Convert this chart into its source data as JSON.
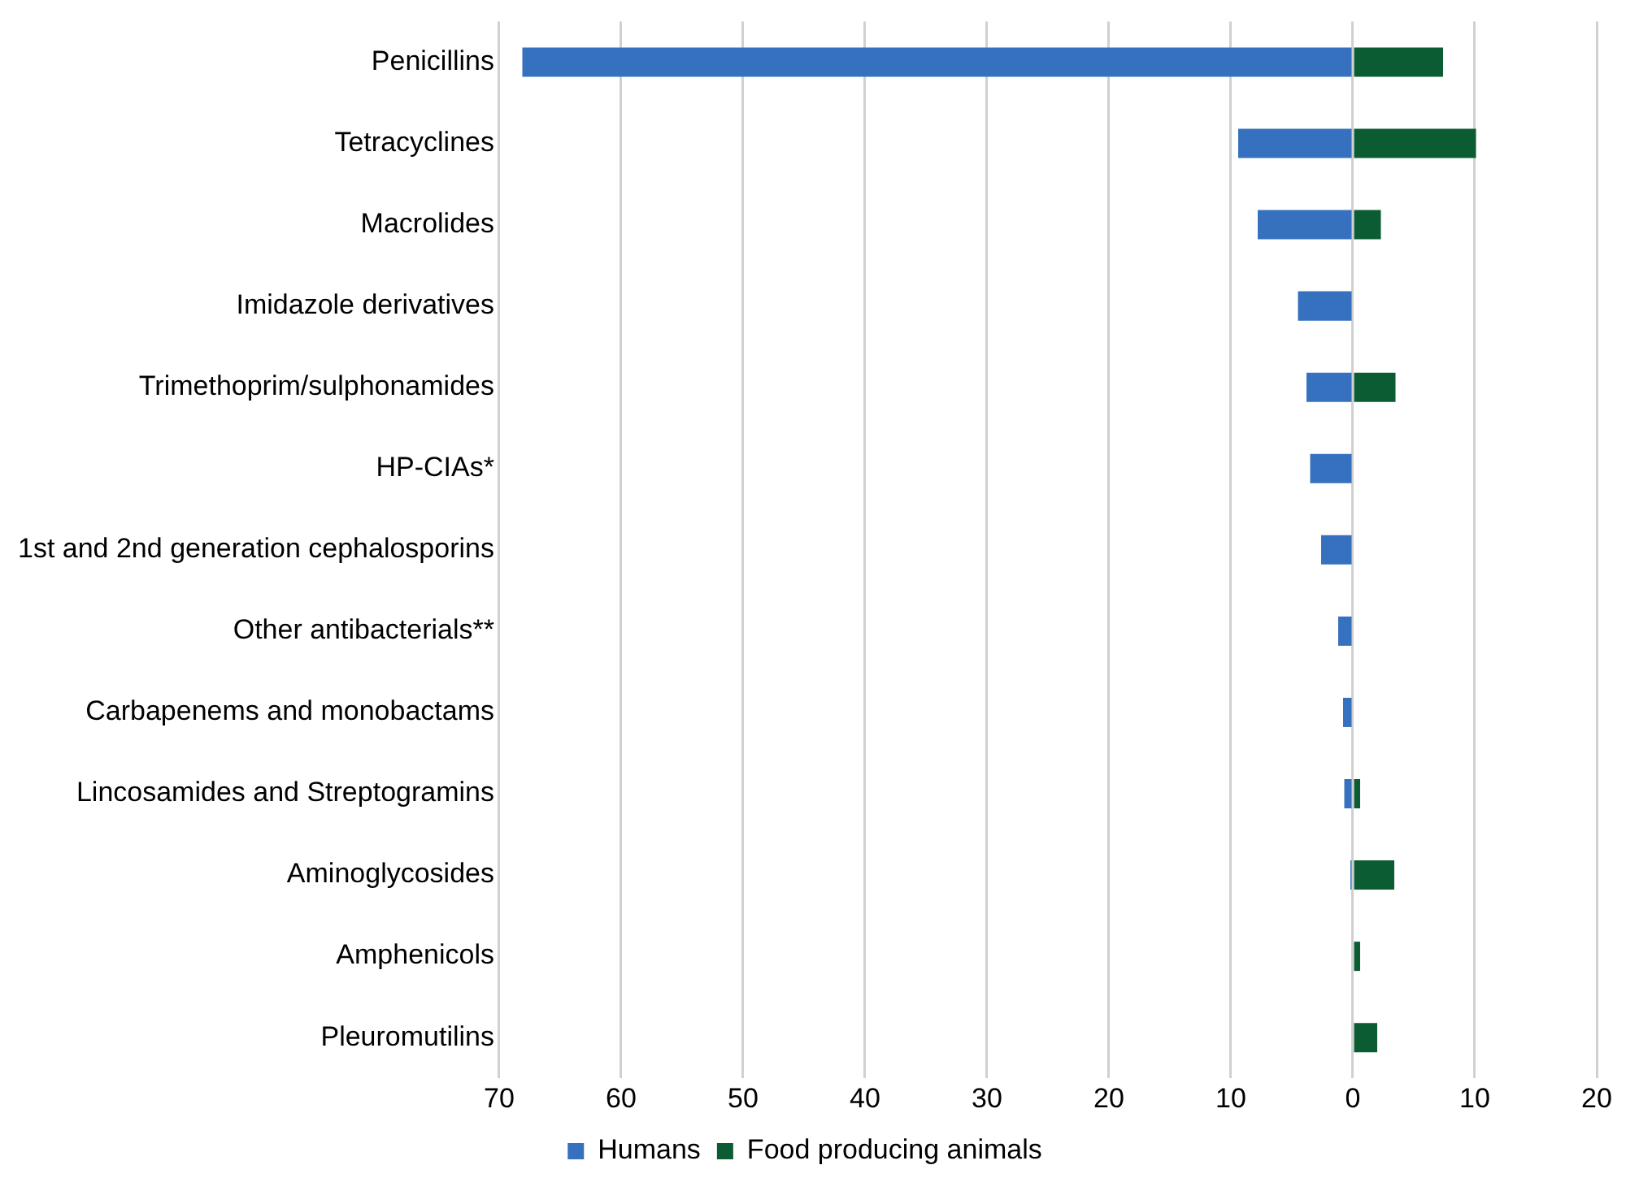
{
  "chart_data": {
    "type": "bar",
    "orientation": "horizontal",
    "stacked": true,
    "categories": [
      "Penicillins",
      "Tetracyclines",
      "Macrolides",
      "Imidazole derivatives",
      "Trimethoprim/sulphonamides",
      "HP-CIAs*",
      "1st and 2nd generation cephalosporins",
      "Other antibacterials**",
      "Carbapenems and monobactams",
      "Lincosamides and Streptogramins",
      "Aminoglycosides",
      "Amphenicols",
      "Pleuromutilins"
    ],
    "series": [
      {
        "name": "Humans",
        "color": "#3571be",
        "values": [
          -68.1,
          -9.4,
          -7.8,
          -4.5,
          -3.8,
          -3.5,
          -2.6,
          -1.2,
          -0.8,
          -0.7,
          -0.2,
          null,
          null
        ]
      },
      {
        "name": "Food producing animals",
        "color": "#0b5c33",
        "values": [
          7.4,
          10.1,
          2.3,
          null,
          3.5,
          0.1,
          null,
          null,
          null,
          0.6,
          3.4,
          0.6,
          2.0
        ]
      }
    ],
    "xlim": [
      -70,
      20
    ],
    "xticks": [
      {
        "value": -70,
        "label": "70"
      },
      {
        "value": -60,
        "label": "60"
      },
      {
        "value": -50,
        "label": "50"
      },
      {
        "value": -40,
        "label": "40"
      },
      {
        "value": -30,
        "label": "30"
      },
      {
        "value": -20,
        "label": "20"
      },
      {
        "value": -10,
        "label": "10"
      },
      0,
      10,
      20
    ],
    "grid": "x",
    "legend": "bottom"
  }
}
